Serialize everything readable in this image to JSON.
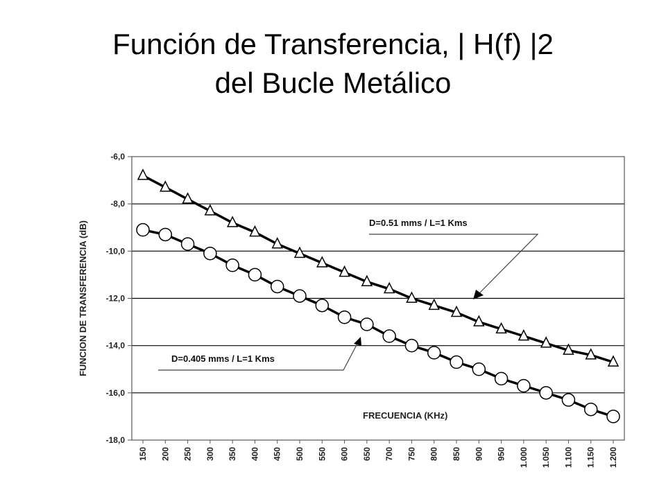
{
  "slide": {
    "title_line1": "Función de Transferencia, | H(f) |2",
    "title_line2": "del Bucle Metálico"
  },
  "chart_data": {
    "type": "line",
    "title": "",
    "xlabel": "FRECUENCIA (KHz)",
    "ylabel": "FUNCION DE TRANSFERENCIA (dB)",
    "ylim": [
      -18,
      -6
    ],
    "y_ticks": [
      "-6,0",
      "-8,0",
      "-10,0",
      "-12,0",
      "-14,0",
      "-16,0",
      "-18,0"
    ],
    "categories": [
      "150",
      "200",
      "250",
      "300",
      "350",
      "400",
      "450",
      "500",
      "550",
      "600",
      "650",
      "700",
      "750",
      "800",
      "850",
      "900",
      "950",
      "1.000",
      "1.050",
      "1.100",
      "1.150",
      "1.200"
    ],
    "grid": "horizontal",
    "series": [
      {
        "name": "D=0.51 mms / L=1 Kms",
        "marker": "triangle",
        "values": [
          -6.8,
          -7.3,
          -7.8,
          -8.3,
          -8.8,
          -9.2,
          -9.7,
          -10.1,
          -10.5,
          -10.9,
          -11.3,
          -11.6,
          -12.0,
          -12.3,
          -12.6,
          -13.0,
          -13.3,
          -13.6,
          -13.9,
          -14.2,
          -14.4,
          -14.7
        ]
      },
      {
        "name": "D=0.405 mms / L=1 Kms",
        "marker": "circle",
        "values": [
          -9.1,
          -9.3,
          -9.7,
          -10.1,
          -10.6,
          -11.0,
          -11.5,
          -11.9,
          -12.3,
          -12.8,
          -13.1,
          -13.6,
          -14.0,
          -14.3,
          -14.7,
          -15.0,
          -15.4,
          -15.7,
          -16.0,
          -16.3,
          -16.7,
          -17.0
        ]
      }
    ],
    "annotations": [
      {
        "text": "D=0.51 mms / L=1 Kms",
        "series": 0
      },
      {
        "text": "D=0.405 mms / L=1 Kms",
        "series": 1
      }
    ],
    "colors": {
      "line": "#000000",
      "marker_fill": "#ffffff",
      "grid": "#000000",
      "frame": "#555555"
    }
  }
}
